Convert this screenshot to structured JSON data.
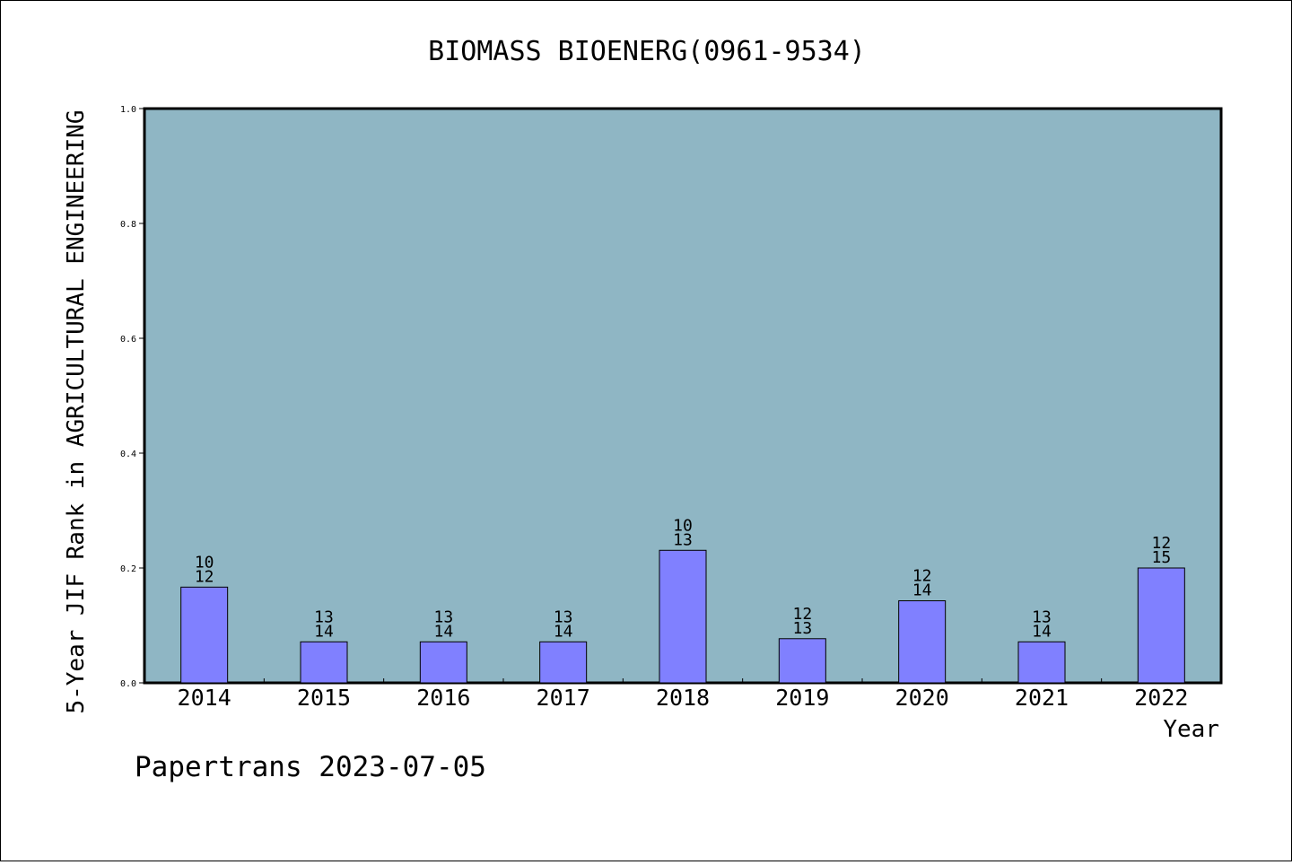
{
  "chart_data": {
    "type": "bar",
    "title": "BIOMASS BIOENERG(0961-9534)",
    "xlabel": "Year",
    "ylabel": "5-Year JIF Rank in AGRICULTURAL ENGINEERING",
    "ylim": [
      0,
      1.0
    ],
    "yticks": [
      "0.0",
      "0.2",
      "0.4",
      "0.6",
      "0.8",
      "1.0"
    ],
    "categories": [
      "2014",
      "2015",
      "2016",
      "2017",
      "2018",
      "2019",
      "2020",
      "2021",
      "2022"
    ],
    "values": [
      0.1667,
      0.0714,
      0.0714,
      0.0714,
      0.2308,
      0.0769,
      0.1429,
      0.0714,
      0.2
    ],
    "rank_labels": [
      "10",
      "13",
      "13",
      "13",
      "10",
      "12",
      "12",
      "13",
      "12"
    ],
    "total_labels": [
      "12",
      "14",
      "14",
      "14",
      "13",
      "13",
      "14",
      "14",
      "15"
    ],
    "grid": false,
    "plot_background": "#8fb6c4",
    "bar_color": "#8080ff"
  },
  "footer": {
    "credit": "Papertrans 2023-07-05"
  }
}
